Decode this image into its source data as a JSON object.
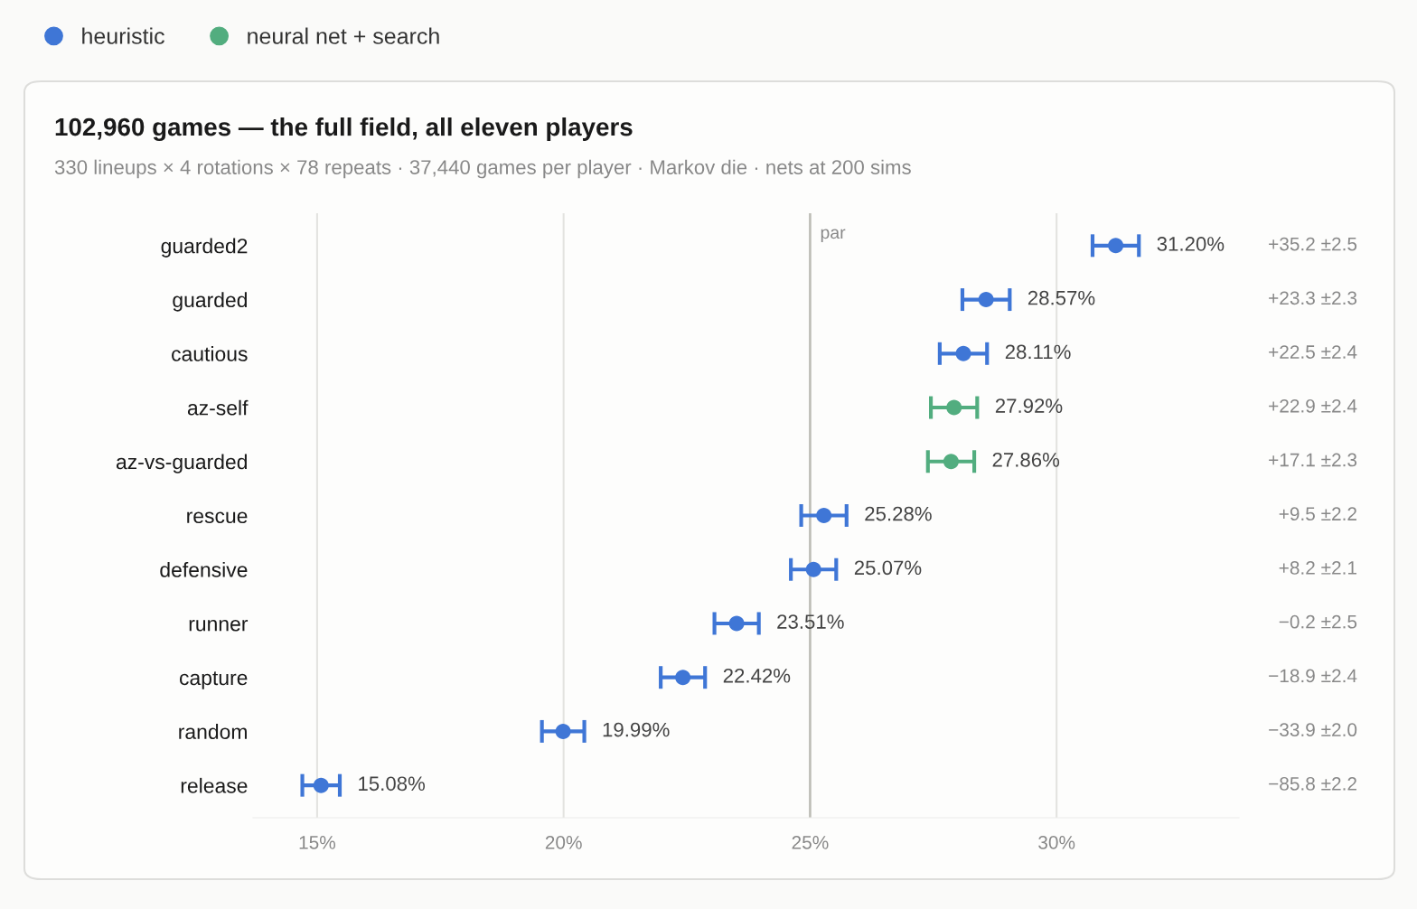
{
  "chart_data": {
    "type": "scatter",
    "orientation": "horizontal",
    "title": "102,960 games — the full field, all eleven players",
    "subtitle": "330 lineups × 4 rotations × 78 repeats · 37,440 games per player · Markov die · nets at 200 sims",
    "categories": [
      "guarded2",
      "guarded",
      "cautious",
      "az-self",
      "az-vs-guarded",
      "rescue",
      "defensive",
      "runner",
      "capture",
      "random",
      "release"
    ],
    "series": [
      {
        "name": "heuristic",
        "color": "#3f76d6",
        "values": [
          31.2,
          28.57,
          28.11,
          null,
          null,
          25.28,
          25.07,
          23.51,
          22.42,
          19.99,
          15.08
        ],
        "errors": [
          0.47,
          0.48,
          0.48,
          null,
          null,
          0.46,
          0.46,
          0.45,
          0.45,
          0.43,
          0.38
        ],
        "value_labels": [
          "31.20%",
          "28.57%",
          "28.11%",
          null,
          null,
          "25.28%",
          "25.07%",
          "23.51%",
          "22.42%",
          "19.99%",
          "15.08%"
        ]
      },
      {
        "name": "neural net + search",
        "color": "#52ad7f",
        "values": [
          null,
          null,
          null,
          27.92,
          27.86,
          null,
          null,
          null,
          null,
          null,
          null
        ],
        "errors": [
          null,
          null,
          null,
          0.47,
          0.47,
          null,
          null,
          null,
          null,
          null,
          null
        ],
        "value_labels": [
          null,
          null,
          null,
          "27.92%",
          "27.86%",
          null,
          null,
          null,
          null,
          null,
          null
        ]
      }
    ],
    "xlim": [
      13.7,
      33.7
    ],
    "xticks": [
      {
        "value": 15,
        "label": "15%"
      },
      {
        "value": 20,
        "label": "20%"
      },
      {
        "value": 25,
        "label": "25%"
      },
      {
        "value": 30,
        "label": "30%"
      }
    ],
    "grid": "x",
    "marker": "circle",
    "legend": "top left",
    "ref_lines": [
      {
        "axis": "x",
        "value": 25,
        "label": "par",
        "color": "#bdbdb5"
      }
    ],
    "annotations": [
      "+35.2 ±2.5",
      "+23.3 ±2.3",
      "+22.5 ±2.4",
      "+22.9 ±2.4",
      "+17.1 ±2.3",
      "+9.5 ±2.2",
      "+8.2 ±2.1",
      "−0.2 ±2.5",
      "−18.9 ±2.4",
      "−33.9 ±2.0",
      "−85.8 ±2.2"
    ]
  }
}
